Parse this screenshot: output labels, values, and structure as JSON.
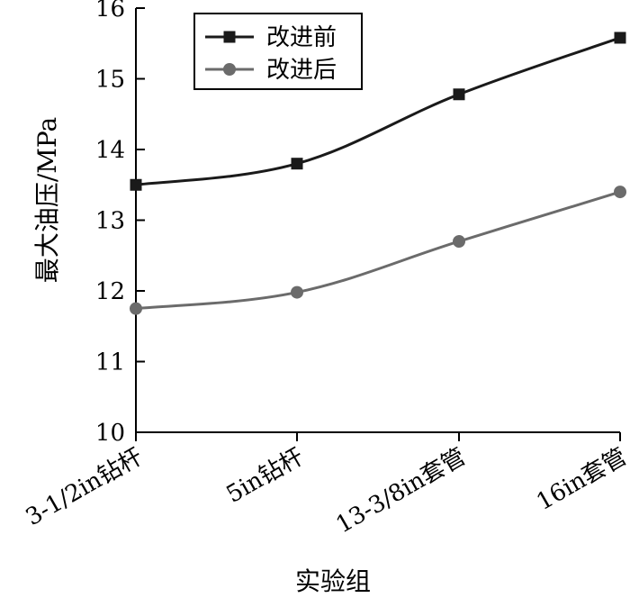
{
  "chart_data": {
    "type": "line",
    "title": "",
    "xlabel": "实验组",
    "ylabel": "最大油压/MPa",
    "categories": [
      "3-1/2in钻杆",
      "5in钻杆",
      "13-3/8in套管",
      "16in套管"
    ],
    "series": [
      {
        "name": "改进前",
        "values": [
          13.5,
          13.8,
          14.78,
          15.58
        ],
        "color": "#1a1a1a",
        "marker": "square"
      },
      {
        "name": "改进后",
        "values": [
          11.75,
          11.98,
          12.7,
          13.4
        ],
        "color": "#6b6b6b",
        "marker": "circle"
      }
    ],
    "ylim": [
      10,
      16
    ],
    "yticks": [
      "10",
      "11",
      "12",
      "13",
      "14",
      "15",
      "16"
    ],
    "grid": false,
    "legend_position": "top-left"
  }
}
